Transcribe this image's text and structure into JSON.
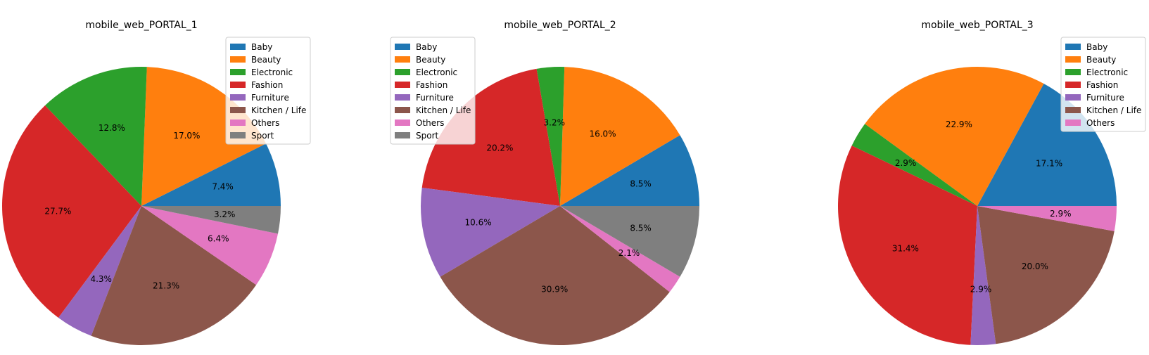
{
  "colors": {
    "Baby": "#1f77b4",
    "Beauty": "#ff7f0e",
    "Electronic": "#2ca02c",
    "Fashion": "#d62728",
    "Furniture": "#9467bd",
    "Kitchen / Life": "#8c564b",
    "Others": "#e377c2",
    "Sport": "#7f7f7f"
  },
  "chart_data": [
    {
      "type": "pie",
      "title": "mobile_web_PORTAL_1",
      "legend_placement": "top-right",
      "categories": [
        "Baby",
        "Beauty",
        "Electronic",
        "Fashion",
        "Furniture",
        "Kitchen / Life",
        "Others",
        "Sport"
      ],
      "values": [
        7.4,
        17.0,
        12.8,
        27.7,
        4.3,
        21.3,
        6.4,
        3.2
      ],
      "labels": [
        "7.4%",
        "17.0%",
        "12.8%",
        "27.7%",
        "4.3%",
        "21.3%",
        "6.4%",
        "3.2%"
      ]
    },
    {
      "type": "pie",
      "title": "mobile_web_PORTAL_2",
      "legend_placement": "top-left",
      "categories": [
        "Baby",
        "Beauty",
        "Electronic",
        "Fashion",
        "Furniture",
        "Kitchen / Life",
        "Others",
        "Sport"
      ],
      "values": [
        8.5,
        16.0,
        3.2,
        20.2,
        10.6,
        30.9,
        2.1,
        8.5
      ],
      "labels": [
        "8.5%",
        "16.0%",
        "3.2%",
        "20.2%",
        "10.6%",
        "30.9%",
        "2.1%",
        "8.5%"
      ]
    },
    {
      "type": "pie",
      "title": "mobile_web_PORTAL_3",
      "legend_placement": "top-right",
      "categories": [
        "Baby",
        "Beauty",
        "Electronic",
        "Fashion",
        "Furniture",
        "Kitchen / Life",
        "Others"
      ],
      "values": [
        17.1,
        22.9,
        2.9,
        31.4,
        2.9,
        20.0,
        2.9
      ],
      "labels": [
        "17.1%",
        "22.9%",
        "2.9%",
        "31.4%",
        "2.9%",
        "20.0%",
        "2.9%"
      ]
    }
  ]
}
